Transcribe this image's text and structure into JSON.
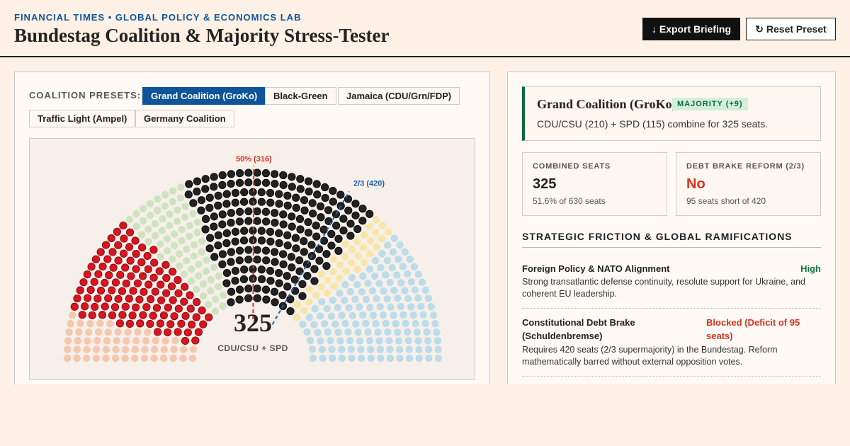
{
  "header": {
    "kicker": "FINANCIAL TIMES • GLOBAL POLICY & ECONOMICS LAB",
    "title": "Bundestag Coalition & Majority Stress-Tester"
  },
  "buttons": [
    "↓ Export Briefing",
    "↻ Reset Preset"
  ],
  "presets": {
    "label": "COALITION PRESETS:",
    "items": [
      "Grand Coalition (GroKo)",
      "Black-Green",
      "Jamaica (CDU/Grn/FDP)",
      "Traffic Light (Ampel)",
      "Germany Coalition"
    ],
    "active": 0
  },
  "chart": {
    "groups": [
      {
        "count": 55,
        "color": "#f3c8ae"
      },
      {
        "count": 115,
        "color": "#d9141f"
      },
      {
        "count": 70,
        "color": "#cfe3c0"
      },
      {
        "count": 210,
        "color": "#222222"
      },
      {
        "count": 35,
        "color": "#f8e6a8"
      },
      {
        "count": 145,
        "color": "#bcdcea"
      }
    ],
    "thresholds": [
      {
        "value": 316,
        "label": "50% (316)",
        "color": "#d6331f"
      },
      {
        "value": 420,
        "label": "2/3 (420)",
        "color": "#1f5fa8"
      }
    ],
    "center_value": "325",
    "center_label": "CDU/CSU + SPD"
  },
  "summary": {
    "title": "Grand Coalition (GroKo)",
    "badge": "MAJORITY (+9)",
    "text": "CDU/CSU (210) + SPD (115) combine for 325 seats."
  },
  "stats": [
    {
      "label": "COMBINED SEATS",
      "value": "325",
      "note": "51.6% of 630 seats",
      "tone": "#222222"
    },
    {
      "label": "DEBT BRAKE REFORM (2/3)",
      "value": "No",
      "note": "95 seats short of 420",
      "tone": "#d6331f"
    }
  ],
  "section_title": "STRATEGIC FRICTION & GLOBAL RAMIFICATIONS",
  "items": [
    {
      "title": "Foreign Policy & NATO Alignment",
      "level": "High",
      "tone": "#0b7a3e",
      "text": "Strong transatlantic defense continuity, resolute support for Ukraine, and coherent EU leadership."
    },
    {
      "title": "Constitutional Debt Brake (Schuldenbremse)",
      "level": "Blocked (Deficit of 95 seats)",
      "tone": "#d6331f",
      "text": "Requires 420 seats (2/3 supermajority) in the Bundestag. Reform mathematically barred without external opposition votes."
    }
  ]
}
